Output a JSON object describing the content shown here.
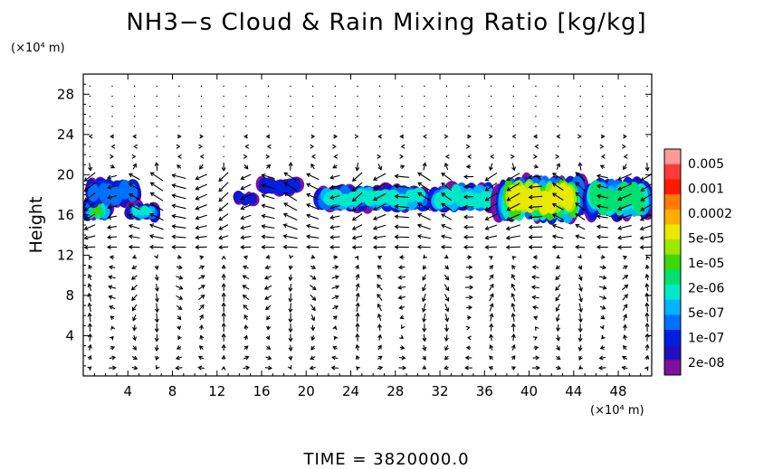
{
  "chart_data": {
    "type": "heatmap",
    "title": "NH3−s Cloud & Rain Mixing Ratio [kg/kg]",
    "ylabel": "Height",
    "xunit": "(×10⁴ m)",
    "yunit": "(×10⁴ m)",
    "time_label": "TIME  =  3820000.0",
    "xlim": [
      0,
      51
    ],
    "ylim": [
      0,
      30
    ],
    "xticks": [
      "4",
      "8",
      "12",
      "16",
      "20",
      "24",
      "28",
      "32",
      "36",
      "40",
      "44",
      "48"
    ],
    "xtick_values": [
      4,
      8,
      12,
      16,
      20,
      24,
      28,
      32,
      36,
      40,
      44,
      48
    ],
    "yticks": [
      "4",
      "8",
      "12",
      "16",
      "20",
      "24",
      "28"
    ],
    "ytick_values": [
      4,
      8,
      12,
      16,
      20,
      24,
      28
    ],
    "colorbar": {
      "labels": [
        "0.005",
        "0.001",
        "0.0002",
        "5e-05",
        "1e-05",
        "2e-06",
        "5e-07",
        "1e-07",
        "2e-08"
      ],
      "colors_top_to_bottom": [
        "#ff9a9a",
        "#ff3a3a",
        "#ff1a00",
        "#ff7a00",
        "#ffae00",
        "#e8e800",
        "#9ce800",
        "#3cd800",
        "#00e070",
        "#00e8c8",
        "#00b4ff",
        "#0070ff",
        "#0020e0",
        "#2010c0",
        "#8010a0"
      ]
    },
    "cloud_patches": [
      {
        "x0": 0.0,
        "x1": 2.5,
        "y0": 15.5,
        "y1": 17.5,
        "level": 6
      },
      {
        "x0": 0.3,
        "x1": 5.0,
        "y0": 17.0,
        "y1": 19.5,
        "level": 2
      },
      {
        "x0": 4.0,
        "x1": 6.7,
        "y0": 15.5,
        "y1": 17.2,
        "level": 4
      },
      {
        "x0": 13.7,
        "x1": 15.5,
        "y0": 17.0,
        "y1": 18.2,
        "level": 1
      },
      {
        "x0": 15.8,
        "x1": 19.5,
        "y0": 18.0,
        "y1": 19.7,
        "level": 1
      },
      {
        "x0": 21.0,
        "x1": 31.0,
        "y0": 16.5,
        "y1": 18.8,
        "level": 4
      },
      {
        "x0": 31.0,
        "x1": 37.0,
        "y0": 16.5,
        "y1": 19.0,
        "level": 4
      },
      {
        "x0": 37.0,
        "x1": 45.0,
        "y0": 15.5,
        "y1": 19.5,
        "level": 8
      },
      {
        "x0": 45.0,
        "x1": 51.0,
        "y0": 15.8,
        "y1": 19.3,
        "level": 5
      }
    ]
  }
}
